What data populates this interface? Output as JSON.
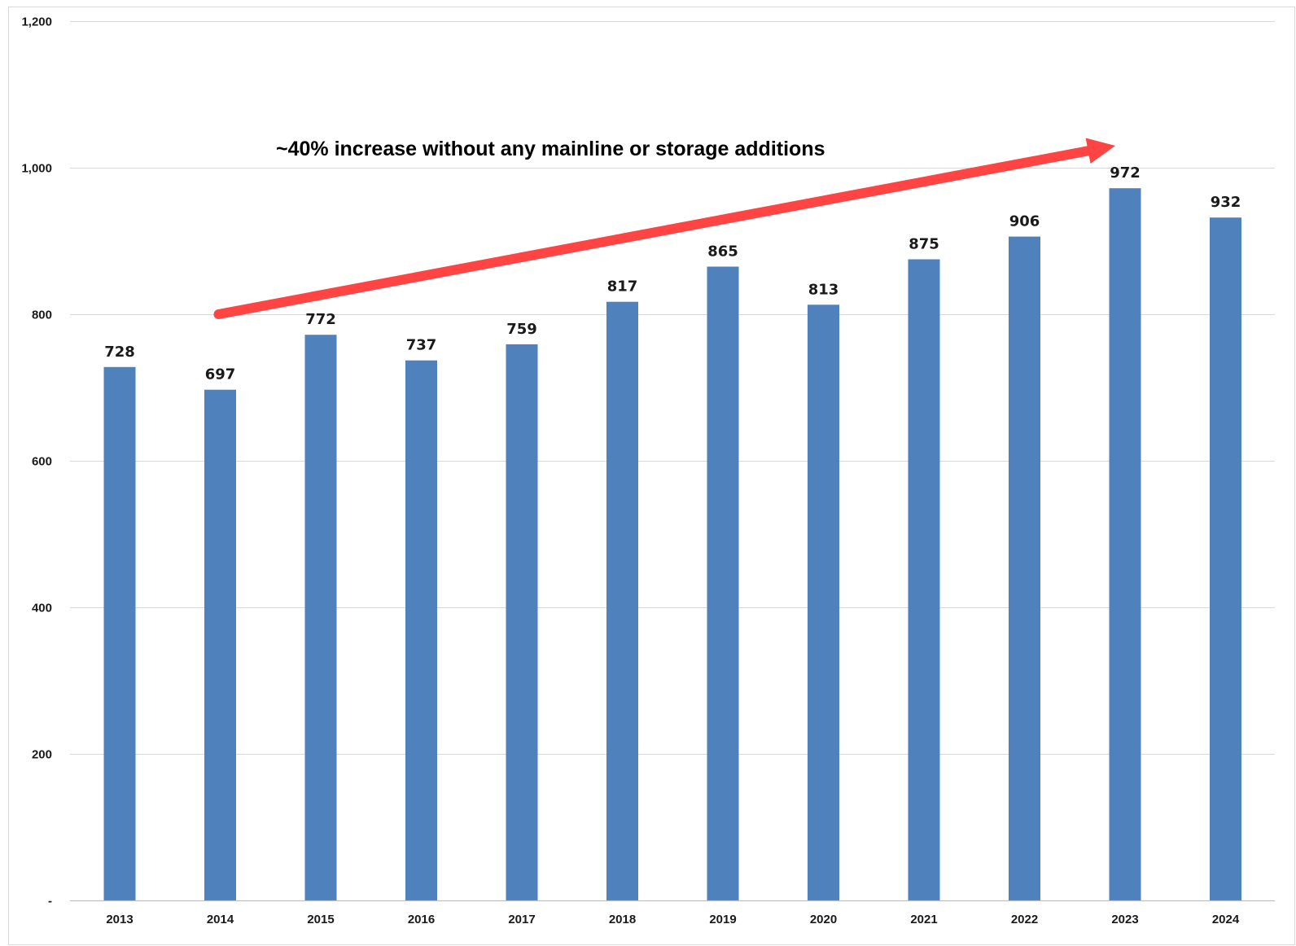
{
  "chart_data": {
    "type": "bar",
    "categories": [
      "2013",
      "2014",
      "2015",
      "2016",
      "2017",
      "2018",
      "2019",
      "2020",
      "2021",
      "2022",
      "2023",
      "2024"
    ],
    "values": [
      728,
      697,
      772,
      737,
      759,
      817,
      865,
      813,
      875,
      906,
      972,
      932
    ],
    "data_labels": [
      "728",
      "697",
      "772",
      "737",
      "759",
      "817",
      "865",
      "813",
      "875",
      "906",
      "972",
      "932"
    ],
    "ylim": [
      0,
      1200
    ],
    "y_ticks": [
      0,
      200,
      400,
      600,
      800,
      1000,
      1200
    ],
    "y_tick_labels": [
      "-",
      "200",
      "400",
      "600",
      "800",
      "1,000",
      "1,200"
    ],
    "grid": true,
    "legend": "none",
    "bar_color": "#4f81bd",
    "annotation": {
      "text": "~40% increase without any mainline or storage additions",
      "arrow_color": "#ff4444",
      "arrow_from": {
        "x": "2014",
        "y": 800
      },
      "arrow_to": {
        "x": "2023",
        "y": 1030
      }
    }
  }
}
